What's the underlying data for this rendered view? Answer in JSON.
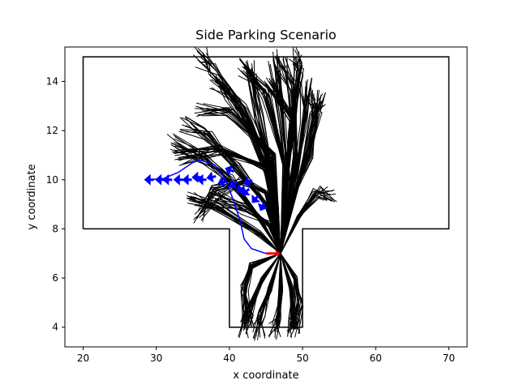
{
  "chart_data": {
    "type": "line",
    "title": "Side Parking Scenario",
    "xlabel": "x coordinate",
    "ylabel": "y coordinate",
    "xlim": [
      17.5,
      72.5
    ],
    "ylim": [
      3.2,
      15.4
    ],
    "xticks": [
      20,
      30,
      40,
      50,
      60,
      70
    ],
    "yticks": [
      4,
      6,
      8,
      10,
      12,
      14
    ],
    "grid": false,
    "legend": "none",
    "boundary": {
      "name": "parking boundary",
      "color": "#000000",
      "points": [
        [
          20,
          8
        ],
        [
          20,
          15
        ],
        [
          70,
          15
        ],
        [
          70,
          8
        ],
        [
          50,
          8
        ],
        [
          50,
          4
        ],
        [
          40,
          4
        ],
        [
          40,
          8
        ],
        [
          20,
          8
        ]
      ]
    },
    "explored_paths": {
      "name": "explored tree",
      "color": "#000000",
      "paths": [
        [
          [
            47,
            7
          ],
          [
            46.5,
            9
          ],
          [
            45,
            11
          ],
          [
            42,
            13
          ],
          [
            38,
            14.5
          ],
          [
            36,
            15
          ]
        ],
        [
          [
            47,
            7
          ],
          [
            47.5,
            9.5
          ],
          [
            48.5,
            12
          ],
          [
            49.5,
            14.5
          ],
          [
            49,
            15
          ]
        ],
        [
          [
            47,
            7
          ],
          [
            49,
            9.5
          ],
          [
            51,
            11
          ],
          [
            52,
            12.5
          ],
          [
            51.5,
            13.5
          ]
        ],
        [
          [
            47,
            7
          ],
          [
            49.5,
            8.5
          ],
          [
            52,
            9.5
          ],
          [
            53.8,
            9.4
          ]
        ],
        [
          [
            47,
            7
          ],
          [
            44,
            8.5
          ],
          [
            40,
            10
          ],
          [
            36,
            11
          ],
          [
            32,
            11.5
          ]
        ],
        [
          [
            47,
            7
          ],
          [
            45,
            9
          ],
          [
            41,
            10.5
          ],
          [
            37,
            11.8
          ],
          [
            34,
            12.2
          ]
        ],
        [
          [
            47,
            7
          ],
          [
            46,
            9.5
          ],
          [
            43,
            12
          ],
          [
            40,
            13.5
          ],
          [
            38,
            14
          ]
        ],
        [
          [
            47,
            7
          ],
          [
            48,
            10
          ],
          [
            47,
            13
          ],
          [
            46,
            15
          ]
        ],
        [
          [
            47,
            7
          ],
          [
            45,
            9.5
          ],
          [
            42,
            10
          ],
          [
            38,
            9.5
          ],
          [
            36,
            8.6
          ]
        ],
        [
          [
            47,
            7
          ],
          [
            46,
            10
          ],
          [
            44,
            12.5
          ],
          [
            43,
            14.5
          ]
        ],
        [
          [
            47,
            7
          ],
          [
            49,
            10
          ],
          [
            50,
            12.5
          ],
          [
            50.5,
            13.8
          ]
        ],
        [
          [
            47,
            7
          ],
          [
            45.5,
            8.2
          ],
          [
            42,
            8.8
          ],
          [
            38,
            9.2
          ]
        ],
        [
          [
            47,
            7
          ],
          [
            44.5,
            6
          ],
          [
            42.5,
            4.5
          ],
          [
            42,
            3.9
          ]
        ],
        [
          [
            47,
            7
          ],
          [
            45.5,
            5.5
          ],
          [
            44.5,
            4.5
          ],
          [
            44,
            3.8
          ]
        ],
        [
          [
            47,
            7
          ],
          [
            47,
            5.5
          ],
          [
            46.5,
            4.2
          ],
          [
            46.2,
            3.8
          ]
        ],
        [
          [
            47,
            7
          ],
          [
            48.5,
            5.5
          ],
          [
            48.7,
            4.2
          ],
          [
            48.5,
            3.9
          ]
        ],
        [
          [
            47,
            7
          ],
          [
            43,
            6.5
          ],
          [
            42,
            5.5
          ],
          [
            42.5,
            4.2
          ]
        ],
        [
          [
            47,
            7
          ],
          [
            49,
            6
          ],
          [
            49.5,
            5
          ],
          [
            48.8,
            3.9
          ]
        ],
        [
          [
            47,
            7
          ],
          [
            47.5,
            10.5
          ],
          [
            45,
            13.5
          ],
          [
            42,
            14.6
          ]
        ],
        [
          [
            47,
            7
          ],
          [
            49,
            11
          ],
          [
            48.5,
            13.8
          ],
          [
            47,
            14.8
          ]
        ],
        [
          [
            47,
            7
          ],
          [
            48.5,
            12.5
          ],
          [
            45.5,
            14
          ]
        ],
        [
          [
            47,
            7
          ],
          [
            50,
            10.5
          ],
          [
            51.5,
            12.5
          ],
          [
            52.5,
            13.2
          ]
        ],
        [
          [
            47,
            7
          ],
          [
            44,
            7.8
          ],
          [
            38,
            9
          ],
          [
            35,
            9.3
          ]
        ],
        [
          [
            47,
            7
          ],
          [
            46,
            11
          ],
          [
            40,
            12.8
          ],
          [
            36,
            12.9
          ]
        ],
        [
          [
            47,
            7
          ],
          [
            45,
            10.5
          ],
          [
            39,
            11.2
          ],
          [
            33,
            10.9
          ]
        ]
      ]
    },
    "final_path": {
      "name": "final path",
      "color": "#0000ff",
      "points": [
        [
          29,
          10
        ],
        [
          31,
          10.05
        ],
        [
          33,
          10.3
        ],
        [
          35,
          10.7
        ],
        [
          36,
          10.8
        ],
        [
          38,
          10.6
        ],
        [
          39.5,
          10
        ],
        [
          40.5,
          9.2
        ],
        [
          41.5,
          8.3
        ],
        [
          42,
          7.6
        ],
        [
          43,
          7.2
        ],
        [
          45,
          7.0
        ]
      ],
      "arrows": [
        [
          29,
          10,
          180
        ],
        [
          30.5,
          10,
          180
        ],
        [
          31.5,
          10,
          180
        ],
        [
          33,
          10,
          180
        ],
        [
          34.2,
          10,
          180
        ],
        [
          35.5,
          10.1,
          180
        ],
        [
          36.2,
          10,
          180
        ],
        [
          37.5,
          10.1,
          190
        ],
        [
          39,
          9.9,
          200
        ],
        [
          40.5,
          9.8,
          210
        ],
        [
          41.5,
          9.6,
          215
        ],
        [
          42.2,
          9.5,
          220
        ],
        [
          43.5,
          9.2,
          230
        ],
        [
          44.5,
          8.9,
          245
        ],
        [
          40,
          10.4,
          160
        ],
        [
          42.5,
          9.9,
          200
        ]
      ]
    },
    "start_pose": {
      "name": "start pose",
      "color": "#ff0000",
      "x": 45,
      "y": 7,
      "heading": 0,
      "length": 2
    }
  }
}
